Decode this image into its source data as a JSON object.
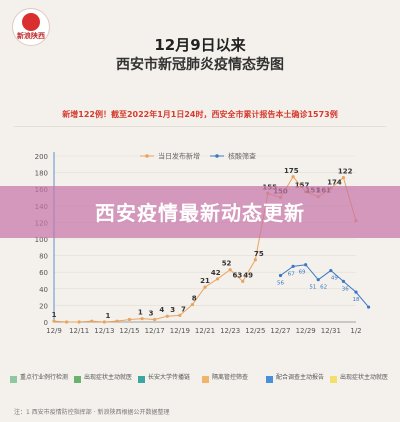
{
  "logo": {
    "text": "新浪陕西"
  },
  "header": {
    "title_line1": "12月9日以来",
    "title_line2": "西安市新冠肺炎疫情态势图"
  },
  "subtitle": "新增122例！截至2022年1月1日24时，西安全市累计报告本土确诊1573例",
  "banner": {
    "text": "西安疫情最新动态更新"
  },
  "footer_legend": [
    {
      "label": "重点行业例行检测",
      "color": "#8fc7a0"
    },
    {
      "label": "出现症状主动就医",
      "color": "#6ab36f"
    },
    {
      "label": "长安大学传播链",
      "color": "#3aa7a0"
    },
    {
      "label": "隔离管控筛查",
      "color": "#f2b36b"
    },
    {
      "label": "配合调查主动报告",
      "color": "#4a90d9"
    },
    {
      "label": "出现症状主动就医",
      "color": "#f2e06b"
    }
  ],
  "footnote": "注：1 西安市疫情防控指挥部 · 新浪陕西根据公开数据整理",
  "chart_data": {
    "type": "line",
    "y_ticks": [
      "0",
      "20",
      "40",
      "60",
      "80",
      "100",
      "120",
      "140",
      "160",
      "180",
      "200"
    ],
    "ylim": [
      0,
      200
    ],
    "x_tick_labels": [
      "12/9",
      "12/11",
      "12/13",
      "12/15",
      "12/17",
      "12/19",
      "12/21",
      "12/23",
      "12/25",
      "12/27",
      "12/29",
      "12/31",
      "1/2"
    ],
    "legend": [
      {
        "name": "当日发布新增",
        "color": "#e8a35e"
      },
      {
        "name": "核酸筛查",
        "color": "#3b78c4"
      }
    ],
    "series": [
      {
        "name": "当日发布新增",
        "color": "#e8a35e",
        "points": [
          {
            "x": 0,
            "y": 1
          },
          {
            "x": 1,
            "y": 0
          },
          {
            "x": 2,
            "y": 0
          },
          {
            "x": 3,
            "y": 1
          },
          {
            "x": 4,
            "y": 0
          },
          {
            "x": 5,
            "y": 1
          },
          {
            "x": 6,
            "y": 3
          },
          {
            "x": 7,
            "y": 4
          },
          {
            "x": 8,
            "y": 3
          },
          {
            "x": 9,
            "y": 7
          },
          {
            "x": 10,
            "y": 8
          },
          {
            "x": 11,
            "y": 21
          },
          {
            "x": 12,
            "y": 42
          },
          {
            "x": 13,
            "y": 52
          },
          {
            "x": 14,
            "y": 63
          },
          {
            "x": 15,
            "y": 49
          },
          {
            "x": 16,
            "y": 75
          },
          {
            "x": 17,
            "y": 155
          },
          {
            "x": 18,
            "y": 150
          },
          {
            "x": 19,
            "y": 175
          },
          {
            "x": 20,
            "y": 157
          },
          {
            "x": 21,
            "y": 151
          },
          {
            "x": 22,
            "y": 161
          },
          {
            "x": 23,
            "y": 174
          },
          {
            "x": 24,
            "y": 122
          }
        ],
        "labels": [
          {
            "x": 0,
            "text": "1"
          },
          {
            "x": 5,
            "text": "1"
          },
          {
            "x": 8,
            "text": "1"
          },
          {
            "x": 9,
            "text": "3"
          },
          {
            "x": 10,
            "text": "4"
          },
          {
            "x": 11,
            "text": "3"
          },
          {
            "x": 12,
            "text": "7"
          },
          {
            "x": 13,
            "text": "8"
          },
          {
            "x": 14,
            "text": "21"
          },
          {
            "x": 15,
            "text": "42"
          },
          {
            "x": 16,
            "text": "52"
          },
          {
            "x": 17,
            "text": "63"
          },
          {
            "x": 18,
            "text": "49"
          },
          {
            "x": 19,
            "text": "75"
          },
          {
            "x": 20,
            "text": "155"
          },
          {
            "x": 21,
            "text": "150"
          },
          {
            "x": 22,
            "text": "175"
          },
          {
            "x": 23,
            "text": "157"
          },
          {
            "x": 24,
            "text": "151"
          },
          {
            "x": 25,
            "text": "161"
          },
          {
            "x": 26,
            "text": "174"
          },
          {
            "x": 27,
            "text": "122"
          }
        ]
      },
      {
        "name": "核酸筛查",
        "color": "#3b78c4",
        "points": [
          {
            "x": 18,
            "y": 56
          },
          {
            "x": 19,
            "y": 67
          },
          {
            "x": 20,
            "y": 69
          },
          {
            "x": 21,
            "y": 51
          },
          {
            "x": 22,
            "y": 62
          },
          {
            "x": 23,
            "y": 49
          },
          {
            "x": 24,
            "y": 36
          },
          {
            "x": 25,
            "y": 18
          }
        ],
        "labels": [
          {
            "x": 21,
            "text": "56"
          },
          {
            "x": 22,
            "text": "67"
          },
          {
            "x": 23,
            "text": "69"
          },
          {
            "x": 24,
            "text": "51"
          },
          {
            "x": 25,
            "text": "62"
          },
          {
            "x": 26,
            "text": "49"
          },
          {
            "x": 27,
            "text": "36"
          },
          {
            "x": 28,
            "text": "18"
          }
        ]
      }
    ]
  }
}
